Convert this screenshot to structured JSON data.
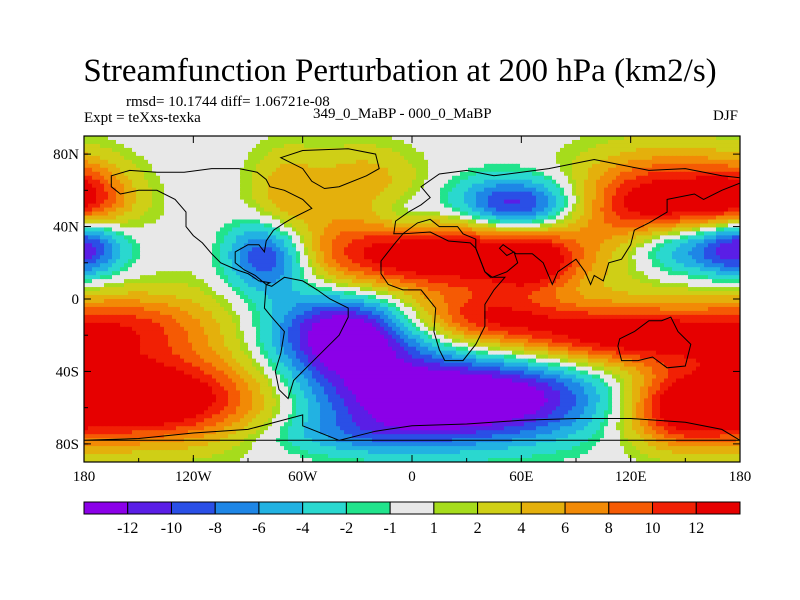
{
  "chart_data": {
    "type": "heatmap",
    "title": "Streamfunction Perturbation at 200 hPa (km2/s)",
    "stats_text": "rmsd= 10.1744 diff= 1.06721e-08",
    "experiment_text": "Expt = teXxs-texka",
    "difference_text": "349_0_MaBP - 000_0_MaBP",
    "season": "DJF",
    "x_ticks": [
      "180",
      "120W",
      "60W",
      "0",
      "60E",
      "120E",
      "180"
    ],
    "y_ticks": [
      "80N",
      "40N",
      "0",
      "40S",
      "80S"
    ],
    "xlim": [
      -180,
      180
    ],
    "ylim": [
      -90,
      90
    ],
    "colorbar": {
      "labels": [
        "-12",
        "-10",
        "-8",
        "-6",
        "-4",
        "-2",
        "-1",
        "1",
        "2",
        "4",
        "6",
        "8",
        "10",
        "12"
      ],
      "colors": [
        "#8b00e8",
        "#5a1ee6",
        "#2a4fe6",
        "#1e86e6",
        "#22b2e2",
        "#2ad8cf",
        "#21e38c",
        "#e8e8e8",
        "#a6dc1c",
        "#cfcf16",
        "#e4b00c",
        "#f28a06",
        "#f55a04",
        "#f12004",
        "#e60000"
      ]
    },
    "features": [
      {
        "name": "northeast-pacific-high",
        "lon": 137,
        "lat": 50,
        "rx": 34,
        "ry": 20,
        "amp": 16
      },
      {
        "name": "northwest-pacific-high-edge",
        "lon": -180,
        "lat": 55,
        "rx": 18,
        "ry": 14,
        "amp": 9
      },
      {
        "name": "north-america-ridge",
        "lon": -70,
        "lat": 58,
        "rx": 14,
        "ry": 18,
        "amp": 5
      },
      {
        "name": "greenland-ridge",
        "lon": -27,
        "lat": 66,
        "rx": 22,
        "ry": 14,
        "amp": 5
      },
      {
        "name": "siberia-trough",
        "lon": 57,
        "lat": 51,
        "rx": 25,
        "ry": 11,
        "amp": -14
      },
      {
        "name": "asia-trough",
        "lon": 150,
        "lat": 30,
        "rx": 30,
        "ry": 12,
        "amp": -14
      },
      {
        "name": "eastpacific-trough",
        "lon": -180,
        "lat": 30,
        "rx": 14,
        "ry": 12,
        "amp": -9
      },
      {
        "name": "central-america-trough",
        "lon": -79,
        "lat": 24,
        "rx": 17,
        "ry": 14,
        "amp": -14
      },
      {
        "name": "subtropical-high-band",
        "lon": 13,
        "lat": 25,
        "rx": 58,
        "ry": 16,
        "amp": 16
      },
      {
        "name": "subtropical-high-east",
        "lon": 65,
        "lat": 20,
        "rx": 15,
        "ry": 10,
        "amp": 8
      },
      {
        "name": "tropical-pacific-ridge",
        "lon": -155,
        "lat": -15,
        "rx": 38,
        "ry": 14,
        "amp": 9
      },
      {
        "name": "south-america-trough",
        "lon": -37,
        "lat": -20,
        "rx": 28,
        "ry": 17,
        "amp": -16
      },
      {
        "name": "indian-ocean-ridge",
        "lon": 40,
        "lat": -10,
        "rx": 30,
        "ry": 10,
        "amp": 9
      },
      {
        "name": "australia-ridge",
        "lon": 115,
        "lat": -20,
        "rx": 45,
        "ry": 12,
        "amp": 14
      },
      {
        "name": "south-pacific-ridge",
        "lon": -150,
        "lat": -55,
        "rx": 55,
        "ry": 17,
        "amp": 18
      },
      {
        "name": "southern-ocean-trough",
        "lon": 25,
        "lat": -55,
        "rx": 60,
        "ry": 16,
        "amp": -18
      },
      {
        "name": "southern-ocean-east",
        "lon": 148,
        "lat": -62,
        "rx": 22,
        "ry": 14,
        "amp": 10
      },
      {
        "name": "antarctic-ring",
        "lon": -30,
        "lat": -75,
        "rx": 40,
        "ry": 8,
        "amp": -4
      },
      {
        "name": "north-atlantic-trough",
        "lon": -5,
        "lat": 45,
        "rx": 16,
        "ry": 9,
        "amp": -5
      }
    ],
    "coastlines": [
      {
        "name": "north-america",
        "points": [
          [
            -165,
            68
          ],
          [
            -155,
            71
          ],
          [
            -140,
            70
          ],
          [
            -125,
            70
          ],
          [
            -110,
            72
          ],
          [
            -95,
            72
          ],
          [
            -85,
            70
          ],
          [
            -80,
            66
          ],
          [
            -78,
            62
          ],
          [
            -70,
            60
          ],
          [
            -60,
            55
          ],
          [
            -55,
            50
          ],
          [
            -65,
            45
          ],
          [
            -70,
            42
          ],
          [
            -76,
            38
          ],
          [
            -80,
            32
          ],
          [
            -81,
            26
          ],
          [
            -84,
            30
          ],
          [
            -90,
            30
          ],
          [
            -97,
            26
          ],
          [
            -97,
            20
          ],
          [
            -92,
            16
          ],
          [
            -86,
            13
          ],
          [
            -80,
            8
          ],
          [
            -78,
            9
          ],
          [
            -84,
            10
          ],
          [
            -90,
            14
          ],
          [
            -96,
            16
          ],
          [
            -105,
            20
          ],
          [
            -110,
            25
          ],
          [
            -115,
            31
          ],
          [
            -120,
            35
          ],
          [
            -124,
            40
          ],
          [
            -124,
            48
          ],
          [
            -130,
            55
          ],
          [
            -140,
            60
          ],
          [
            -150,
            60
          ],
          [
            -160,
            58
          ],
          [
            -165,
            62
          ]
        ]
      },
      {
        "name": "greenland",
        "points": [
          [
            -72,
            78
          ],
          [
            -60,
            82
          ],
          [
            -35,
            83
          ],
          [
            -20,
            80
          ],
          [
            -18,
            72
          ],
          [
            -25,
            68
          ],
          [
            -40,
            62
          ],
          [
            -48,
            61
          ],
          [
            -55,
            65
          ],
          [
            -60,
            72
          ]
        ]
      },
      {
        "name": "south-america",
        "points": [
          [
            -80,
            8
          ],
          [
            -77,
            7
          ],
          [
            -70,
            12
          ],
          [
            -60,
            10
          ],
          [
            -52,
            5
          ],
          [
            -45,
            0
          ],
          [
            -35,
            -5
          ],
          [
            -35,
            -10
          ],
          [
            -40,
            -20
          ],
          [
            -48,
            -28
          ],
          [
            -58,
            -38
          ],
          [
            -65,
            -45
          ],
          [
            -68,
            -55
          ],
          [
            -73,
            -50
          ],
          [
            -75,
            -40
          ],
          [
            -72,
            -30
          ],
          [
            -70,
            -18
          ],
          [
            -77,
            -10
          ],
          [
            -81,
            -5
          ]
        ]
      },
      {
        "name": "eurasia",
        "points": [
          [
            -10,
            36
          ],
          [
            -9,
            43
          ],
          [
            -2,
            48
          ],
          [
            5,
            52
          ],
          [
            10,
            56
          ],
          [
            5,
            62
          ],
          [
            15,
            69
          ],
          [
            30,
            71
          ],
          [
            45,
            68
          ],
          [
            60,
            70
          ],
          [
            75,
            72
          ],
          [
            100,
            77
          ],
          [
            115,
            74
          ],
          [
            130,
            71
          ],
          [
            150,
            72
          ],
          [
            170,
            68
          ],
          [
            180,
            67
          ],
          [
            180,
            64
          ],
          [
            170,
            60
          ],
          [
            160,
            55
          ],
          [
            155,
            58
          ],
          [
            140,
            55
          ],
          [
            140,
            48
          ],
          [
            130,
            42
          ],
          [
            122,
            38
          ],
          [
            120,
            30
          ],
          [
            115,
            22
          ],
          [
            108,
            20
          ],
          [
            105,
            10
          ],
          [
            100,
            13
          ],
          [
            98,
            8
          ],
          [
            95,
            15
          ],
          [
            90,
            22
          ],
          [
            80,
            15
          ],
          [
            77,
            8
          ],
          [
            72,
            20
          ],
          [
            66,
            25
          ],
          [
            57,
            25
          ],
          [
            50,
            30
          ],
          [
            48,
            28
          ],
          [
            52,
            24
          ],
          [
            56,
            26
          ],
          [
            58,
            20
          ],
          [
            52,
            15
          ],
          [
            44,
            12
          ],
          [
            40,
            15
          ],
          [
            35,
            28
          ],
          [
            35,
            33
          ],
          [
            28,
            36
          ],
          [
            25,
            40
          ],
          [
            15,
            40
          ],
          [
            10,
            44
          ],
          [
            3,
            42
          ],
          [
            -5,
            36
          ]
        ]
      },
      {
        "name": "africa",
        "points": [
          [
            -17,
            21
          ],
          [
            -10,
            30
          ],
          [
            -5,
            36
          ],
          [
            10,
            37
          ],
          [
            20,
            32
          ],
          [
            32,
            31
          ],
          [
            35,
            28
          ],
          [
            40,
            15
          ],
          [
            43,
            12
          ],
          [
            51,
            12
          ],
          [
            45,
            5
          ],
          [
            40,
            -3
          ],
          [
            40,
            -15
          ],
          [
            35,
            -25
          ],
          [
            28,
            -34
          ],
          [
            18,
            -34
          ],
          [
            15,
            -28
          ],
          [
            12,
            -18
          ],
          [
            13,
            -5
          ],
          [
            9,
            0
          ],
          [
            5,
            5
          ],
          [
            -5,
            5
          ],
          [
            -13,
            8
          ],
          [
            -17,
            14
          ]
        ]
      },
      {
        "name": "australia",
        "points": [
          [
            114,
            -22
          ],
          [
            122,
            -18
          ],
          [
            130,
            -12
          ],
          [
            137,
            -12
          ],
          [
            142,
            -10
          ],
          [
            146,
            -18
          ],
          [
            153,
            -25
          ],
          [
            150,
            -37
          ],
          [
            140,
            -38
          ],
          [
            132,
            -32
          ],
          [
            124,
            -34
          ],
          [
            115,
            -34
          ],
          [
            113,
            -26
          ]
        ]
      },
      {
        "name": "antarctica",
        "points": [
          [
            -180,
            -78
          ],
          [
            -150,
            -77
          ],
          [
            -120,
            -74
          ],
          [
            -90,
            -72
          ],
          [
            -60,
            -64
          ],
          [
            -60,
            -70
          ],
          [
            -40,
            -78
          ],
          [
            -20,
            -73
          ],
          [
            0,
            -70
          ],
          [
            30,
            -69
          ],
          [
            60,
            -67
          ],
          [
            90,
            -66
          ],
          [
            120,
            -66
          ],
          [
            150,
            -68
          ],
          [
            170,
            -72
          ],
          [
            180,
            -78
          ]
        ]
      }
    ]
  }
}
